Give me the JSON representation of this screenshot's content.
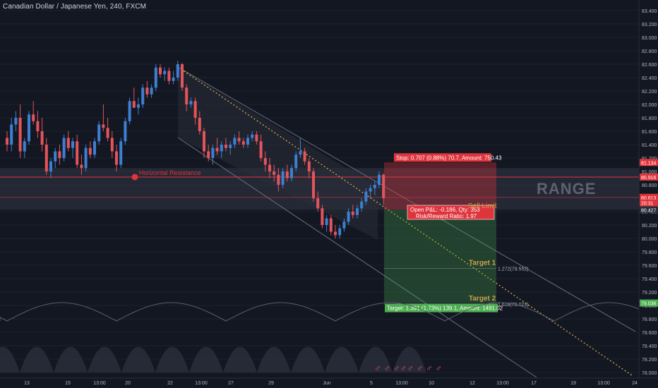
{
  "header": {
    "title": "Canadian Dollar / Japanese Yen, 240, FXCM"
  },
  "colors": {
    "background": "#131722",
    "bull": "#3d7fd1",
    "bear": "#e5535b",
    "resistance": "#e0343c",
    "target": "#4caf50",
    "stop": "#e0343c",
    "fib_label": "#c9a24a",
    "text": "#b2b5be"
  },
  "chart_data": {
    "type": "candlestick",
    "ylim": [
      78.0,
      83.5
    ],
    "y_ticks": [
      "83.400",
      "83.200",
      "83.000",
      "82.800",
      "82.600",
      "82.400",
      "82.200",
      "82.000",
      "81.800",
      "81.600",
      "81.400",
      "81.200",
      "81.000",
      "80.800",
      "80.600",
      "80.400",
      "80.200",
      "80.000",
      "79.800",
      "79.600",
      "79.400",
      "79.200",
      "79.000",
      "78.800",
      "78.600",
      "78.400",
      "78.200",
      "78.000"
    ],
    "x_ticks": [
      "13",
      "15",
      "13:00",
      "20",
      "22",
      "13:00",
      "27",
      "29",
      "Jun",
      "5",
      "13:00",
      "10",
      "12",
      "13:00",
      "17",
      "19",
      "13:00",
      "24"
    ],
    "price_badges": [
      {
        "label": "81.134",
        "value": 81.134,
        "color": "#e0343c"
      },
      {
        "label": "80.916",
        "value": 80.916,
        "color": "#e0343c"
      },
      {
        "label": "80.613",
        "value": 80.613,
        "color": "#e0343c"
      },
      {
        "label": "20:31",
        "value": 80.53,
        "color": "#e0343c"
      },
      {
        "label": "80.427",
        "value": 80.427,
        "color": "#2a2e39"
      },
      {
        "label": "79.036",
        "value": 79.036,
        "color": "#4caf50"
      }
    ],
    "horizontal_resistance": {
      "label": "Horizontal Resistance",
      "value": 80.916
    },
    "range_zone": {
      "label": "RANGE",
      "top": 81.05,
      "bottom": 80.427
    },
    "sell_limit": {
      "label": "Sell Limit",
      "entry": 80.427,
      "stop": 81.134,
      "target": 79.036
    },
    "stop_label": "Stop: 0.707 (0.88%) 70.7, Amount: 750.43",
    "target_label": "Target: 1.391 (1.73%) 139.1, Amount: 1491.02",
    "pnl_label": {
      "line1": "Open P&L: -0.186, Qty: 353",
      "line2": "Risk/Reward Ratio: 1.97"
    },
    "fib_targets": [
      {
        "label": "Target 1",
        "level_label": "1.272(79.552)",
        "value": 79.552
      },
      {
        "label": "Target 2",
        "level_label": "1.618(79.023)",
        "value": 79.023
      }
    ],
    "bottom_icons": "♂ ♂ ♂♂♂ ♂ ♂ ♂",
    "candles": [
      [
        81.5,
        81.6,
        81.3,
        81.4
      ],
      [
        81.4,
        81.8,
        81.3,
        81.7
      ],
      [
        81.7,
        81.9,
        81.6,
        81.8
      ],
      [
        81.8,
        82.0,
        81.2,
        81.3
      ],
      [
        81.3,
        81.5,
        81.2,
        81.45
      ],
      [
        81.45,
        81.9,
        81.4,
        81.85
      ],
      [
        81.85,
        82.05,
        81.7,
        81.75
      ],
      [
        81.75,
        81.9,
        81.5,
        81.6
      ],
      [
        81.6,
        81.8,
        81.3,
        81.4
      ],
      [
        81.4,
        81.5,
        80.95,
        81.0
      ],
      [
        81.0,
        81.2,
        80.9,
        81.15
      ],
      [
        81.15,
        81.35,
        81.05,
        81.3
      ],
      [
        81.3,
        81.4,
        81.1,
        81.2
      ],
      [
        81.2,
        81.55,
        81.15,
        81.5
      ],
      [
        81.5,
        81.6,
        81.3,
        81.35
      ],
      [
        81.35,
        81.5,
        81.2,
        81.45
      ],
      [
        81.45,
        81.55,
        81.05,
        81.1
      ],
      [
        81.1,
        81.25,
        80.95,
        81.05
      ],
      [
        81.05,
        81.4,
        81.0,
        81.35
      ],
      [
        81.35,
        81.45,
        81.2,
        81.25
      ],
      [
        81.25,
        81.5,
        81.2,
        81.45
      ],
      [
        81.45,
        81.75,
        81.4,
        81.7
      ],
      [
        81.7,
        82.0,
        81.6,
        81.65
      ],
      [
        81.65,
        81.8,
        81.45,
        81.5
      ],
      [
        81.5,
        81.6,
        81.2,
        81.3
      ],
      [
        81.3,
        81.4,
        81.0,
        81.1
      ],
      [
        81.1,
        81.5,
        81.05,
        81.45
      ],
      [
        81.45,
        81.8,
        81.4,
        81.75
      ],
      [
        81.75,
        82.1,
        81.7,
        82.05
      ],
      [
        82.05,
        82.25,
        81.95,
        81.95
      ],
      [
        81.95,
        82.1,
        81.85,
        82.0
      ],
      [
        82.0,
        82.3,
        81.95,
        82.25
      ],
      [
        82.25,
        82.35,
        82.1,
        82.15
      ],
      [
        82.15,
        82.3,
        82.1,
        82.25
      ],
      [
        82.25,
        82.6,
        82.2,
        82.55
      ],
      [
        82.55,
        82.6,
        82.4,
        82.45
      ],
      [
        82.45,
        82.55,
        82.35,
        82.5
      ],
      [
        82.5,
        82.55,
        82.3,
        82.35
      ],
      [
        82.35,
        82.5,
        82.3,
        82.4
      ],
      [
        82.4,
        82.65,
        82.35,
        82.6
      ],
      [
        82.6,
        82.62,
        82.2,
        82.25
      ],
      [
        82.25,
        82.3,
        81.9,
        82.0
      ],
      [
        82.0,
        82.1,
        81.95,
        82.05
      ],
      [
        82.05,
        82.1,
        81.7,
        81.8
      ],
      [
        81.8,
        81.9,
        81.55,
        81.6
      ],
      [
        81.6,
        81.65,
        81.2,
        81.3
      ],
      [
        81.3,
        81.4,
        81.15,
        81.2
      ],
      [
        81.2,
        81.4,
        81.1,
        81.35
      ],
      [
        81.35,
        81.5,
        81.25,
        81.3
      ],
      [
        81.3,
        81.45,
        81.2,
        81.4
      ],
      [
        81.4,
        81.5,
        81.3,
        81.35
      ],
      [
        81.35,
        81.45,
        81.25,
        81.4
      ],
      [
        81.4,
        81.55,
        81.35,
        81.5
      ],
      [
        81.5,
        81.6,
        81.4,
        81.45
      ],
      [
        81.45,
        81.5,
        81.35,
        81.4
      ],
      [
        81.4,
        81.55,
        81.35,
        81.5
      ],
      [
        81.5,
        81.6,
        81.45,
        81.55
      ],
      [
        81.55,
        81.6,
        81.4,
        81.45
      ],
      [
        81.45,
        81.55,
        81.15,
        81.2
      ],
      [
        81.2,
        81.3,
        81.0,
        81.1
      ],
      [
        81.1,
        81.2,
        80.9,
        81.0
      ],
      [
        81.0,
        81.1,
        80.85,
        80.95
      ],
      [
        80.95,
        81.05,
        80.7,
        80.8
      ],
      [
        80.8,
        81.05,
        80.75,
        81.0
      ],
      [
        81.0,
        81.1,
        80.85,
        80.9
      ],
      [
        80.9,
        81.1,
        80.85,
        81.05
      ],
      [
        81.05,
        81.3,
        81.0,
        81.25
      ],
      [
        81.25,
        81.5,
        81.2,
        81.3
      ],
      [
        81.3,
        81.35,
        81.1,
        81.15
      ],
      [
        81.15,
        81.2,
        80.9,
        81.0
      ],
      [
        81.0,
        81.05,
        80.55,
        80.6
      ],
      [
        80.6,
        80.7,
        80.4,
        80.45
      ],
      [
        80.45,
        80.5,
        80.15,
        80.2
      ],
      [
        80.2,
        80.35,
        80.1,
        80.3
      ],
      [
        80.3,
        80.35,
        80.05,
        80.1
      ],
      [
        80.1,
        80.2,
        80.0,
        80.05
      ],
      [
        80.05,
        80.2,
        80.0,
        80.15
      ],
      [
        80.15,
        80.3,
        80.1,
        80.25
      ],
      [
        80.25,
        80.45,
        80.2,
        80.4
      ],
      [
        80.4,
        80.5,
        80.3,
        80.35
      ],
      [
        80.35,
        80.5,
        80.3,
        80.45
      ],
      [
        80.45,
        80.6,
        80.4,
        80.55
      ],
      [
        80.55,
        80.75,
        80.5,
        80.7
      ],
      [
        80.7,
        80.8,
        80.6,
        80.75
      ],
      [
        80.75,
        80.85,
        80.65,
        80.8
      ],
      [
        80.8,
        81.0,
        80.75,
        80.95
      ],
      [
        80.95,
        80.97,
        80.5,
        80.6
      ]
    ]
  }
}
